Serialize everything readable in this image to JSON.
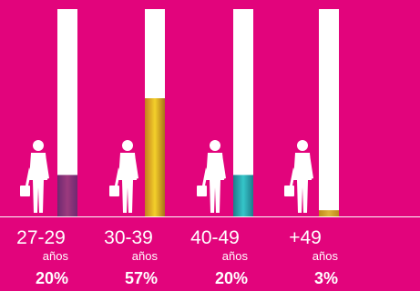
{
  "colors": {
    "background": "#e2047c",
    "track": "#ffffff",
    "baseline": "#ffffff",
    "figure": "#ffffff"
  },
  "chart_data": {
    "type": "bar",
    "title": "",
    "xlabel": "",
    "ylabel": "",
    "ylim": [
      0,
      100
    ],
    "categories": [
      "27-29",
      "30-39",
      "40-49",
      "+49"
    ],
    "unit": "años",
    "values": [
      20,
      57,
      20,
      3
    ],
    "value_labels": [
      "20%",
      "57%",
      "20%",
      "3%"
    ],
    "bar_gradients": [
      [
        "#6d2a70",
        "#9c3a7e",
        "#6d2a70"
      ],
      [
        "#c47e1f",
        "#f3d02a",
        "#a9711a"
      ],
      [
        "#1f7b8b",
        "#35c6c9",
        "#1f7b8b"
      ],
      [
        "#bf8a1a",
        "#e0b33a",
        "#bf8a1a"
      ]
    ],
    "grid": false,
    "legend": "none"
  }
}
